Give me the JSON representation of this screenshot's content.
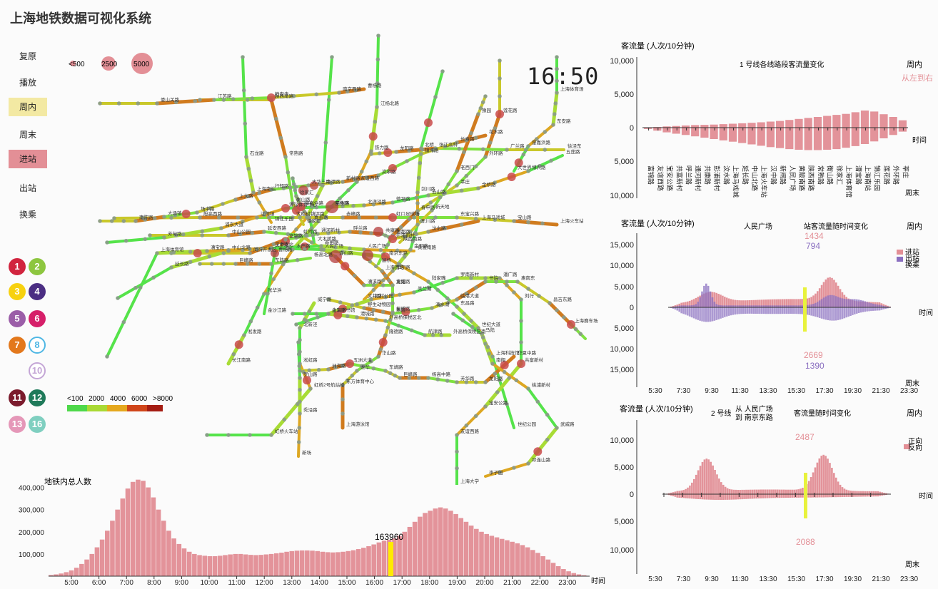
{
  "app_title": "上海地铁数据可视化系统",
  "controls": {
    "reset": "复原",
    "play": "播放",
    "weekday": "周内",
    "weekend": "周末",
    "enter": "进站",
    "exit": "出站",
    "transfer": "换乘"
  },
  "size_legend": [
    "<500",
    "2500",
    "5000"
  ],
  "clock": "16:50",
  "color_legend": [
    "<100",
    "2000",
    "4000",
    "6000",
    ">8000"
  ],
  "line_buttons": [
    {
      "label": "1",
      "color": "#d1243e"
    },
    {
      "label": "2",
      "color": "#8dc63f"
    },
    {
      "label": "3",
      "color": "#f7d10f"
    },
    {
      "label": "4",
      "color": "#4b2e83"
    },
    {
      "label": "5",
      "color": "#9b5ea8"
    },
    {
      "label": "6",
      "color": "#d61f69"
    },
    {
      "label": "7",
      "color": "#e3781c"
    },
    {
      "label": "8",
      "color": "#4fb7e4"
    },
    {
      "label": "10",
      "color": "#c4a6d6"
    },
    {
      "label": "11",
      "color": "#7b1b2d"
    },
    {
      "label": "12",
      "color": "#1f7a5a"
    },
    {
      "label": "13",
      "color": "#e597b8"
    },
    {
      "label": "16",
      "color": "#7fcfc0"
    }
  ],
  "station_labels": [
    "江杨北路",
    "铁力路",
    "友谊西路",
    "宝杨路",
    "水产路",
    "张华浜",
    "淞发路",
    "长江南路",
    "殷高西路",
    "江湾镇",
    "大柏树",
    "赤峰路",
    "虹口足球场",
    "东宝兴路",
    "宝山路",
    "上海火车站",
    "中潭路",
    "镇坪路",
    "曹杨路",
    "金沙江路",
    "中山公园",
    "延安西路",
    "虹桥路",
    "宜山路",
    "漕溪路",
    "龙漕路",
    "石龙路",
    "上海南站",
    "锦江乐园",
    "莲花路",
    "外环路",
    "莘庄",
    "春申路",
    "银都路",
    "颛桥",
    "北桥",
    "剑川路",
    "东川路",
    "金平路",
    "华宁路",
    "文井路",
    "闵行开发区",
    "富锦路",
    "通河新村",
    "呼兰路",
    "共康路",
    "彭浦新村",
    "汶水路",
    "上海马戏城",
    "延长路",
    "中山北路",
    "汉中路",
    "新闸路",
    "人民广场",
    "黄陂南路",
    "陕西南路",
    "常熟路",
    "衡山路",
    "徐家汇",
    "上海体育馆",
    "漕宝路",
    "上海南站",
    "人民广场",
    "南京东路",
    "陆家嘴",
    "东昌路",
    "世纪大道",
    "上海科技馆",
    "世纪公园",
    "龙阳路",
    "张江高科",
    "广兰路",
    "徐泾东",
    "虹桥火车站",
    "虹桥2号航站楼",
    "淞虹路",
    "北新泾",
    "威宁路",
    "娄山关路",
    "江苏路",
    "静安寺",
    "南京西路",
    "曹杨路",
    "上海体育场",
    "东安路",
    "肇嘉浜路",
    "大世界",
    "豫园",
    "老西门",
    "新天地",
    "陕西南路",
    "上海图书馆",
    "顾村公园",
    "美兰湖",
    "罗南新村",
    "潘广路",
    "刘行",
    "共富新村",
    "宝安公路",
    "友谊西路",
    "上海大学",
    "南陈路",
    "大场镇",
    "场中路",
    "上大路",
    "行知路",
    "大华三路",
    "新村路",
    "岚皋路",
    "镇坪路",
    "长寿路",
    "花木路",
    "芳甸路",
    "浦东大道",
    "源深体育中心",
    "民生路",
    "北洋泾路",
    "德平路",
    "云山路",
    "金桥路",
    "博兴路",
    "五莲路",
    "巨峰路",
    "东陆路",
    "杨高北路",
    "金京路",
    "港城路",
    "外高桥保税区北",
    "航津路",
    "外高桥保税区南",
    "洲海路",
    "五洲大道",
    "东靖路",
    "巨峰路",
    "杨高中路",
    "芳华路",
    "龙阳路",
    "华夏中路",
    "罗山路",
    "秀沿路",
    "新场",
    "野生动物园",
    "惠南",
    "滴水湖",
    "临港大道",
    "书院",
    "惠南东",
    "昌吉东路",
    "上海赛车场",
    "嘉定新城",
    "马陆",
    "南翔",
    "桃浦新村",
    "武威路",
    "祁连山路",
    "李子园",
    "上海西站",
    "真如",
    "枫桥路",
    "隆德路",
    "华山路",
    "龙华",
    "东方体育中心",
    "上海游泳馆",
    "徐家汇",
    "肇嘉浜路",
    "嘉善路",
    "大木桥路",
    "东安路",
    "中华艺术宫",
    "耀华路",
    "成山路",
    "杨思",
    "沈杜公路",
    "浦江镇",
    "芦恒路",
    "江月路",
    "联航路",
    "浦三路",
    "三林",
    "三林东",
    "高科西路",
    "花木路",
    "龙柏新村",
    "紫藤路",
    "航中路",
    "蒲汇塘路",
    "上海动物园",
    "七宝",
    "星中路",
    "中春路",
    "九亭",
    "泗泾",
    "佘山",
    "洞泾",
    "松江大学城",
    "松江新城",
    "松江体育中心",
    "醉白池",
    "松江南站",
    "华东理工大学",
    "龙耀路",
    "云锦路",
    "金科路",
    "张江路",
    "诸光路",
    "徐泾北城",
    "嘉松中路",
    "金运路",
    "虹桥火车站",
    "航头东",
    "鹤沙航城",
    "周浦东",
    "罗山路"
  ],
  "panel1": {
    "ylabel": "客流量 (人次/10分钟)",
    "title": "1 号线各线路段客流量变化",
    "side": "周内",
    "direction": "从左到右",
    "xname": "时间",
    "weekend_tag": "周末",
    "ticks": [
      "10,000",
      "5,000",
      "0",
      "5,000",
      "10,000"
    ],
    "stations": [
      "富锦路",
      "友谊西路",
      "宝安公路",
      "共富新村",
      "呼兰路",
      "通河新村",
      "共康路",
      "彭浦新村",
      "汶水路",
      "上海马戏城",
      "延长路",
      "中山北路",
      "上海火车站",
      "汉中路",
      "新闸路",
      "人民广场",
      "黄陂南路",
      "陕西南路",
      "常熟路",
      "衡山路",
      "徐家汇",
      "上海体育馆",
      "漕宝路",
      "上海南站",
      "锦江乐园",
      "莲花路",
      "外环路",
      "莘庄"
    ],
    "up": [
      50,
      100,
      180,
      250,
      320,
      380,
      420,
      460,
      520,
      580,
      650,
      720,
      800,
      900,
      1000,
      1150,
      1300,
      1450,
      1600,
      1750,
      1900,
      2050,
      2300,
      2550,
      2400,
      2000,
      1600,
      1100
    ],
    "down": [
      200,
      450,
      700,
      900,
      1100,
      1300,
      1500,
      1700,
      1900,
      2100,
      2300,
      2500,
      2700,
      2900,
      3050,
      3200,
      3300,
      3350,
      3350,
      3300,
      3200,
      3000,
      2750,
      2450,
      2050,
      1600,
      1100,
      600
    ]
  },
  "panel2": {
    "ylabel": "客流量 (人次/10分钟)",
    "station": "人民广场",
    "title": "站客流量随时间变化",
    "side": "周内",
    "value_up": "1434",
    "value_up2": "794",
    "value_down": "2669",
    "value_down2": "1390",
    "legend": [
      "进站",
      "出站",
      "换乘"
    ],
    "ticks": [
      "15,000",
      "10,000",
      "5,000",
      "0",
      "5,000",
      "10,000",
      "15,000"
    ],
    "xname": "时间",
    "weekend_tag": "周末",
    "xticks": [
      "5:30",
      "7:30",
      "9:30",
      "11:30",
      "13:30",
      "15:30",
      "17:30",
      "19:30",
      "21:30",
      "23:30"
    ]
  },
  "panel3": {
    "ylabel": "客流量 (人次/10分钟)",
    "line": "2 号线",
    "from_to": "从 人民广场\n到 南京东路",
    "title": "客流量随时间变化",
    "side": "周内",
    "value_up": "2487",
    "value_down": "2088",
    "legend": [
      "正向",
      "反向"
    ],
    "ticks": [
      "10,000",
      "5,000",
      "0",
      "5,000",
      "10,000"
    ],
    "xname": "时间",
    "weekend_tag": "周末",
    "xticks": [
      "5:30",
      "7:30",
      "9:30",
      "11:30",
      "13:30",
      "15:30",
      "17:30",
      "19:30",
      "21:30",
      "23:30"
    ]
  },
  "bottom_chart": {
    "type": "bar",
    "title": "地铁内总人数",
    "current_value": "163960",
    "xname": "时间",
    "yticks": [
      "400,000",
      "300,000",
      "200,000",
      "100,000"
    ],
    "xticks": [
      "5:00",
      "6:00",
      "7:00",
      "8:00",
      "9:00",
      "10:00",
      "11:00",
      "12:00",
      "13:00",
      "14:00",
      "15:00",
      "16:00",
      "17:00",
      "18:00",
      "19:00",
      "20:00",
      "21:00",
      "22:00",
      "23:00"
    ]
  },
  "chart_data": [
    {
      "type": "bar",
      "title": "地铁内总人数",
      "xlabel": "时间",
      "ylabel": "",
      "ylim": [
        0,
        450000
      ],
      "x_start": "5:00",
      "x_step_minutes": 10,
      "values": [
        5000,
        8000,
        12000,
        18000,
        26000,
        38000,
        55000,
        75000,
        100000,
        130000,
        165000,
        205000,
        250000,
        300000,
        350000,
        395000,
        425000,
        435000,
        430000,
        400000,
        355000,
        300000,
        250000,
        205000,
        170000,
        145000,
        125000,
        110000,
        100000,
        95000,
        92000,
        90000,
        90000,
        92000,
        95000,
        98000,
        100000,
        100000,
        98000,
        96000,
        95000,
        96000,
        98000,
        100000,
        103000,
        106000,
        110000,
        113000,
        115000,
        116000,
        116000,
        115000,
        113000,
        110000,
        108000,
        107000,
        108000,
        110000,
        113000,
        117000,
        122000,
        128000,
        135000,
        143000,
        152000,
        160000,
        164000,
        170000,
        182000,
        200000,
        222000,
        245000,
        268000,
        285000,
        295000,
        305000,
        310000,
        305000,
        295000,
        280000,
        262000,
        245000,
        228000,
        213000,
        200000,
        190000,
        182000,
        175000,
        168000,
        162000,
        155000,
        148000,
        140000,
        130000,
        118000,
        105000,
        90000,
        75000,
        60000,
        45000,
        32000,
        22000,
        14000,
        8000,
        4000
      ]
    },
    {
      "type": "bar",
      "title": "1 号线各线路段客流量变化",
      "categories": [
        "富锦路",
        "友谊西路",
        "宝安公路",
        "共富新村",
        "呼兰路",
        "通河新村",
        "共康路",
        "彭浦新村",
        "汶水路",
        "上海马戏城",
        "延长路",
        "中山北路",
        "上海火车站",
        "汉中路",
        "新闸路",
        "人民广场",
        "黄陂南路",
        "陕西南路",
        "常熟路",
        "衡山路",
        "徐家汇",
        "上海体育馆",
        "漕宝路",
        "上海南站",
        "锦江乐园",
        "莲花路",
        "外环路",
        "莘庄"
      ],
      "ylim": [
        -10000,
        10000
      ]
    }
  ]
}
